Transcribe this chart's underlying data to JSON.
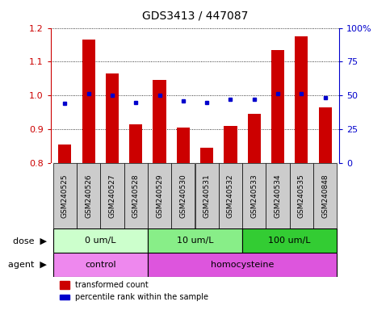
{
  "title": "GDS3413 / 447087",
  "samples": [
    "GSM240525",
    "GSM240526",
    "GSM240527",
    "GSM240528",
    "GSM240529",
    "GSM240530",
    "GSM240531",
    "GSM240532",
    "GSM240533",
    "GSM240534",
    "GSM240535",
    "GSM240848"
  ],
  "transformed_count": [
    0.855,
    1.165,
    1.065,
    0.915,
    1.045,
    0.905,
    0.845,
    0.91,
    0.945,
    1.135,
    1.175,
    0.965
  ],
  "percentile_rank": [
    44,
    51,
    50,
    45,
    50,
    46,
    45,
    47,
    47,
    51,
    51,
    48
  ],
  "ylim_left": [
    0.8,
    1.2
  ],
  "ylim_right": [
    0,
    100
  ],
  "yticks_left": [
    0.8,
    0.9,
    1.0,
    1.1,
    1.2
  ],
  "yticks_right": [
    0,
    25,
    50,
    75,
    100
  ],
  "bar_color": "#cc0000",
  "dot_color": "#0000cc",
  "dose_groups": [
    {
      "label": "0 um/L",
      "start": 0,
      "end": 4,
      "color": "#ccffcc"
    },
    {
      "label": "10 um/L",
      "start": 4,
      "end": 8,
      "color": "#88ee88"
    },
    {
      "label": "100 um/L",
      "start": 8,
      "end": 12,
      "color": "#33cc33"
    }
  ],
  "agent_control_color": "#ee88ee",
  "agent_homo_color": "#dd55dd",
  "dose_label": "dose",
  "agent_label": "agent",
  "legend_bar_label": "transformed count",
  "legend_dot_label": "percentile rank within the sample",
  "sample_box_color": "#cccccc",
  "plot_bg_color": "#ffffff",
  "title_fontsize": 10,
  "tick_fontsize": 7,
  "label_fontsize": 8,
  "row_label_fontsize": 8
}
